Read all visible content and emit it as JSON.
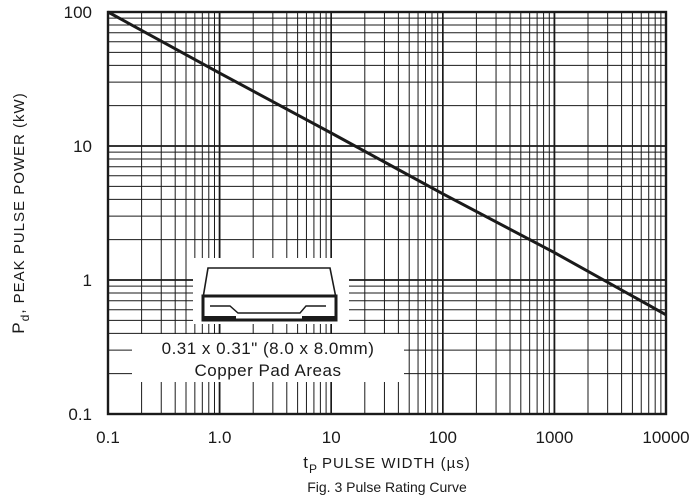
{
  "chart_data": {
    "type": "line",
    "title": "",
    "caption": "Fig. 3 Pulse Rating Curve",
    "xlabel": {
      "symbol": "t",
      "subscript": "P",
      "text": "PULSE WIDTH (µs)"
    },
    "ylabel": {
      "symbol": "P",
      "subscript": "d",
      "text": ", PEAK PULSE POWER (kW)"
    },
    "x_scale": "log",
    "y_scale": "log",
    "xlim": [
      0.1,
      10000
    ],
    "ylim": [
      0.1,
      100
    ],
    "x_ticks": [
      "0.1",
      "1.0",
      "10",
      "100",
      "1000",
      "10000"
    ],
    "y_ticks": [
      "0.1",
      "1",
      "10",
      "100"
    ],
    "grid": true,
    "series": [
      {
        "x": [
          0.1,
          1,
          10,
          100,
          1000,
          10000
        ],
        "y": [
          100,
          35,
          12.5,
          4.4,
          1.6,
          0.55
        ]
      }
    ],
    "inset": {
      "line1": "0.31 x 0.31\" (8.0 x 8.0mm)",
      "line2": "Copper Pad Areas"
    }
  }
}
